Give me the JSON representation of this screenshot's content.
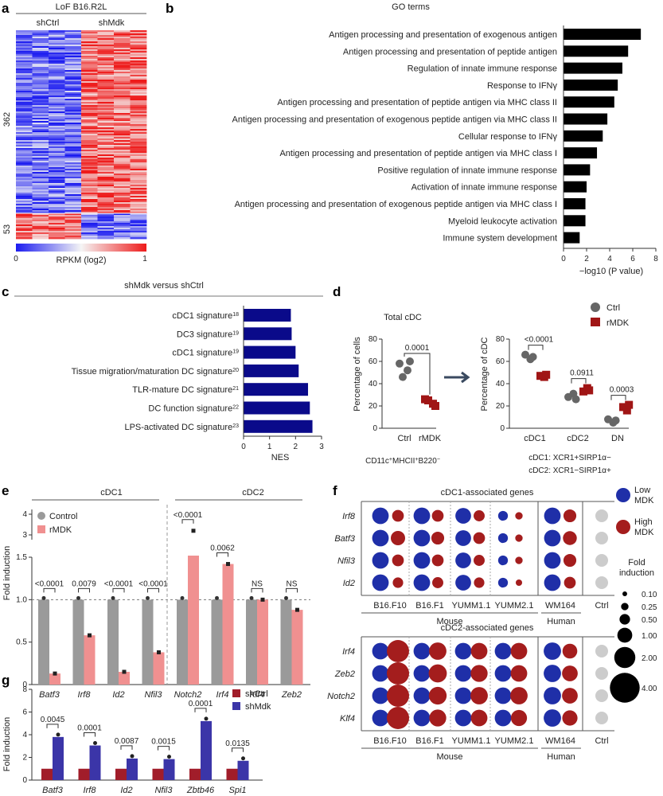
{
  "panel_labels": {
    "a": "a",
    "b": "b",
    "c": "c",
    "d": "d",
    "e": "e",
    "f": "f",
    "g": "g"
  },
  "heatmap": {
    "title": "LoF B16.R2L",
    "col_groups": [
      "shCtrl",
      "shMdk"
    ],
    "row_groups": [
      "362",
      "53"
    ],
    "legend_label": "RPKM (log2)",
    "legend_min": "0",
    "legend_max": "1",
    "colors": {
      "low": "#1c1cf0",
      "mid": "#f5f5f5",
      "high": "#ee1b1b"
    }
  },
  "chart_data": [
    {
      "id": "b",
      "type": "bar",
      "orientation": "horizontal",
      "title": "GO terms",
      "xlabel": "−log10 (P value)",
      "xlim": [
        0,
        8
      ],
      "xticks": [
        "0",
        "2",
        "4",
        "6",
        "8"
      ],
      "categories": [
        "Antigen processing and presentation of exogenous antigen",
        "Antigen processing and presentation of peptide antigen",
        "Regulation of innate immune response",
        "Response to IFNγ",
        "Antigen processing and presentation of peptide antigen via MHC class II",
        "Antigen processing and presentation of exogenous peptide antigen via MHC class II",
        "Cellular response to IFNγ",
        "Antigen processing and presentation of peptide antigen via MHC class I",
        "Positive regulation of innate immune response",
        "Activation of innate immune response",
        "Antigen processing and presentation of exogenous peptide antigen via MHC class I",
        "Myeloid leukocyte activation",
        "Immune system development"
      ],
      "values": [
        6.7,
        5.6,
        5.1,
        4.7,
        4.4,
        3.8,
        3.4,
        2.9,
        2.3,
        2.0,
        1.9,
        1.9,
        1.4
      ],
      "color": "#000000"
    },
    {
      "id": "c",
      "type": "bar",
      "orientation": "horizontal",
      "title": "shMdk versus shCtrl",
      "xlabel": "NES",
      "xlim": [
        0,
        3
      ],
      "xticks": [
        "0",
        "1",
        "2",
        "3"
      ],
      "categories": [
        "cDC1 signature18",
        "DC3 signature19",
        "cDC1 signature19",
        "Tissue migration/maturation DC signature20",
        "TLR-mature DC signature21",
        "DC function signature22",
        "LPS-activated DC signature23"
      ],
      "labels": [
        {
          "name": "cDC1 signature",
          "ref": "18"
        },
        {
          "name": "DC3 signature",
          "ref": "19"
        },
        {
          "name": "cDC1 signature",
          "ref": "19"
        },
        {
          "name": "Tissue migration/maturation DC signature",
          "ref": "20"
        },
        {
          "name": "TLR-mature DC signature",
          "ref": "21"
        },
        {
          "name": "DC function signature",
          "ref": "22"
        },
        {
          "name": "LPS-activated DC signature",
          "ref": "23"
        }
      ],
      "values": [
        1.82,
        1.85,
        2.0,
        2.12,
        2.48,
        2.55,
        2.65
      ],
      "color": "#0a0a8a"
    },
    {
      "id": "d1",
      "type": "scatter",
      "title": "Total cDC",
      "ylabel": "Percentage of cells",
      "ylim": [
        0,
        80
      ],
      "yticks": [
        "0",
        "20",
        "40",
        "60",
        "80"
      ],
      "categories": [
        "Ctrl",
        "rMDK"
      ],
      "series": [
        {
          "name": "Ctrl",
          "values": [
            58,
            52,
            46,
            60
          ]
        },
        {
          "name": "rMDK",
          "values": [
            26,
            22,
            25,
            20
          ]
        }
      ],
      "pvalue": "0.0001",
      "footnote_main": "CD11c",
      "footnote_parts": [
        "+",
        "MHCII",
        "+",
        "B220",
        "−"
      ]
    },
    {
      "id": "d2",
      "type": "scatter",
      "ylabel": "Percentage of cDC",
      "ylim": [
        0,
        80
      ],
      "yticks": [
        "0",
        "20",
        "40",
        "60",
        "80"
      ],
      "categories": [
        "cDC1",
        "cDC2",
        "DN"
      ],
      "series": [
        {
          "name": "Ctrl",
          "values": [
            [
              66,
              62,
              64
            ],
            [
              28,
              31,
              26
            ],
            [
              8,
              5,
              7
            ]
          ]
        },
        {
          "name": "rMDK",
          "values": [
            [
              47,
              46,
              48
            ],
            [
              33,
              36,
              34
            ],
            [
              19,
              16,
              21
            ]
          ]
        }
      ],
      "pvalues": [
        "<0.0001",
        "0.0911",
        "0.0003"
      ],
      "legend": [
        "Ctrl",
        "rMDK"
      ],
      "colors": {
        "Ctrl": "#666666",
        "rMDK": "#a01515"
      },
      "footnotes": [
        "cDC1: XCR1+SIRP1α−",
        "cDC2: XCR1−SIRP1α+"
      ]
    },
    {
      "id": "e",
      "type": "bar",
      "ylabel": "Fold induction",
      "groups": [
        "cDC1",
        "cDC2"
      ],
      "categories": [
        "Batf3",
        "Irf8",
        "Id2",
        "Nfil3",
        "Notch2",
        "Irf4",
        "Klf4",
        "Zeb2"
      ],
      "series": [
        {
          "name": "Control",
          "values": [
            1.0,
            1.0,
            1.0,
            1.0,
            1.0,
            1.0,
            1.0,
            1.0
          ],
          "color": "#9a9a9a"
        },
        {
          "name": "rMDK",
          "values": [
            0.13,
            0.58,
            0.15,
            0.38,
            3.2,
            1.42,
            1.0,
            0.88
          ],
          "color": "#f09090"
        }
      ],
      "yticks": [
        "0",
        "0.5",
        "1.0",
        "1.5",
        "3",
        "4"
      ],
      "pvalues": [
        "<0.0001",
        "0.0079",
        "<0.0001",
        "<0.0001",
        "<0.0001",
        "0.0062",
        "NS",
        "NS"
      ]
    },
    {
      "id": "g",
      "type": "bar",
      "ylabel": "Fold induction",
      "ylim": [
        0,
        8
      ],
      "yticks": [
        "0",
        "2",
        "4",
        "6",
        "8"
      ],
      "categories": [
        "Batf3",
        "Irf8",
        "Id2",
        "Nfil3",
        "Zbtb46",
        "Spi1"
      ],
      "series": [
        {
          "name": "shCtrl",
          "values": [
            1.0,
            1.0,
            1.0,
            1.0,
            1.0,
            1.0
          ],
          "color": "#a11d2a"
        },
        {
          "name": "shMdk",
          "values": [
            3.8,
            3.05,
            1.9,
            1.85,
            5.2,
            1.7
          ],
          "color": "#3b35a8"
        }
      ],
      "pvalues": [
        "0.0045",
        "0.0001",
        "0.0087",
        "0.0015",
        "0.0001",
        "0.0135"
      ]
    },
    {
      "id": "f",
      "type": "dot-matrix",
      "panels": [
        {
          "title": "cDC1-associated genes",
          "genes": [
            "Irf8",
            "Batf3",
            "Nfil3",
            "Id2"
          ],
          "low": [
            [
              1.0,
              1.0,
              0.9,
              0.35,
              1.0
            ],
            [
              1.0,
              1.0,
              0.9,
              0.35,
              1.0
            ],
            [
              1.0,
              1.0,
              0.9,
              0.35,
              1.0
            ],
            [
              1.0,
              1.0,
              0.9,
              0.35,
              1.0
            ]
          ],
          "high": [
            [
              0.5,
              0.5,
              0.45,
              0.2,
              0.6
            ],
            [
              0.75,
              0.6,
              0.5,
              0.2,
              0.7
            ],
            [
              0.5,
              0.5,
              0.45,
              0.2,
              0.6
            ],
            [
              0.4,
              0.45,
              0.4,
              0.15,
              0.5
            ]
          ]
        },
        {
          "title": "cDC2-associated genes",
          "genes": [
            "Irf4",
            "Zeb2",
            "Notch2",
            "Klf4"
          ],
          "low": [
            [
              1.0,
              1.0,
              1.0,
              1.0,
              1.1
            ],
            [
              1.0,
              1.0,
              1.0,
              1.0,
              1.1
            ],
            [
              1.0,
              1.0,
              1.0,
              1.0,
              1.1
            ],
            [
              1.0,
              1.0,
              1.0,
              1.0,
              1.1
            ]
          ],
          "high": [
            [
              1.8,
              1.1,
              1.0,
              1.0,
              0.8
            ],
            [
              2.6,
              1.2,
              1.05,
              1.0,
              0.9
            ],
            [
              1.9,
              1.15,
              1.1,
              1.1,
              0.9
            ],
            [
              2.2,
              1.05,
              1.0,
              0.95,
              0.85
            ]
          ]
        }
      ],
      "columns": [
        "B16.F10",
        "B16.F1",
        "YUMM1.1",
        "YUMM2.1",
        "WM164",
        "Ctrl"
      ],
      "species": [
        "Mouse",
        "Human"
      ],
      "legend": {
        "low_label": "Low",
        "low_label2": "MDK",
        "high_label": "High",
        "high_label2": "MDK",
        "fold_label": "Fold",
        "fold_label2": "induction",
        "sizes": [
          0.1,
          0.25,
          0.5,
          1.0,
          2.0,
          4.0
        ],
        "size_labels": [
          "0.10",
          "0.25",
          "0.50",
          "1.00",
          "2.00",
          "4.00"
        ]
      },
      "colors": {
        "low": "#1f2fa8",
        "high": "#a41d1d",
        "ctrl": "#cccccc"
      }
    }
  ]
}
